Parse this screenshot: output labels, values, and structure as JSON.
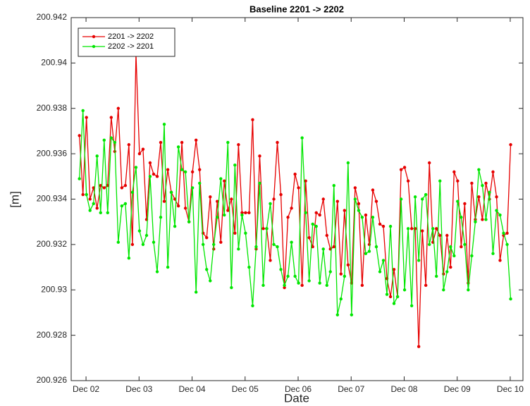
{
  "chart_data": {
    "type": "line",
    "title": "Baseline 2201 -> 2202",
    "x_label": "Date",
    "y_label": "[m]",
    "x": [
      1.875,
      1.942,
      2.008,
      2.075,
      2.142,
      2.208,
      2.275,
      2.342,
      2.408,
      2.475,
      2.542,
      2.608,
      2.675,
      2.742,
      2.808,
      2.875,
      2.942,
      3.008,
      3.075,
      3.142,
      3.208,
      3.275,
      3.342,
      3.408,
      3.475,
      3.542,
      3.608,
      3.675,
      3.742,
      3.808,
      3.875,
      3.942,
      4.008,
      4.075,
      4.142,
      4.208,
      4.275,
      4.342,
      4.408,
      4.475,
      4.542,
      4.608,
      4.675,
      4.742,
      4.808,
      4.875,
      4.942,
      5.008,
      5.075,
      5.142,
      5.208,
      5.275,
      5.342,
      5.408,
      5.475,
      5.542,
      5.608,
      5.675,
      5.742,
      5.808,
      5.875,
      5.942,
      6.008,
      6.075,
      6.142,
      6.208,
      6.275,
      6.342,
      6.408,
      6.475,
      6.542,
      6.608,
      6.675,
      6.742,
      6.808,
      6.875,
      6.942,
      7.008,
      7.075,
      7.142,
      7.208,
      7.275,
      7.342,
      7.408,
      7.475,
      7.542,
      7.608,
      7.675,
      7.742,
      7.808,
      7.875,
      7.942,
      8.008,
      8.075,
      8.142,
      8.208,
      8.275,
      8.342,
      8.408,
      8.475,
      8.542,
      8.608,
      8.675,
      8.742,
      8.808,
      8.875,
      8.942,
      9.008,
      9.075,
      9.142,
      9.208,
      9.275,
      9.342,
      9.408,
      9.475,
      9.542,
      9.608,
      9.675,
      9.742,
      9.808,
      9.875,
      9.942,
      10.008
    ],
    "series": [
      {
        "name": "2201 -> 2202",
        "color": "#e60000",
        "values": [
          200.9368,
          200.9342,
          200.9376,
          200.934,
          200.9345,
          200.9336,
          200.9346,
          200.9345,
          200.9346,
          200.9376,
          200.9361,
          200.938,
          200.9345,
          200.9346,
          200.9364,
          200.932,
          200.9404,
          200.936,
          200.9362,
          200.9331,
          200.9356,
          200.9351,
          200.935,
          200.9365,
          200.9339,
          200.9353,
          200.9343,
          200.934,
          200.9337,
          200.9365,
          200.9336,
          200.933,
          200.9352,
          200.9366,
          200.9353,
          200.9325,
          200.9323,
          200.9341,
          200.9318,
          200.9339,
          200.9321,
          200.9348,
          200.9335,
          200.934,
          200.9325,
          200.9364,
          200.9334,
          200.9334,
          200.9334,
          200.9375,
          200.9318,
          200.9359,
          200.9327,
          200.9327,
          200.9313,
          200.934,
          200.9365,
          200.9342,
          200.9301,
          200.9332,
          200.9336,
          200.9351,
          200.9345,
          200.9302,
          200.9348,
          200.9323,
          200.9319,
          200.9334,
          200.9333,
          200.934,
          200.9324,
          200.9318,
          200.9319,
          200.9339,
          200.9307,
          200.9335,
          200.9311,
          200.9303,
          200.9345,
          200.9338,
          200.9302,
          200.9333,
          200.932,
          200.9344,
          200.9339,
          200.9329,
          200.9328,
          200.9305,
          200.9297,
          200.9309,
          200.9297,
          200.9353,
          200.9354,
          200.9348,
          200.9327,
          200.9327,
          200.9275,
          200.9326,
          200.9302,
          200.9356,
          200.9321,
          200.9327,
          200.9324,
          200.9307,
          200.9324,
          200.931,
          200.9352,
          200.9348,
          200.9319,
          200.9338,
          200.9303,
          200.9347,
          200.9331,
          200.9341,
          200.9331,
          200.9347,
          200.934,
          200.9352,
          200.9341,
          200.9313,
          200.9324,
          200.9325,
          200.9364
        ]
      },
      {
        "name": "2202 -> 2201",
        "color": "#00e600",
        "values": [
          200.9349,
          200.9379,
          200.9342,
          200.9335,
          200.9338,
          200.9359,
          200.9334,
          200.9366,
          200.9334,
          200.9367,
          200.9365,
          200.9321,
          200.9337,
          200.9338,
          200.9314,
          200.9343,
          200.9354,
          200.9326,
          200.932,
          200.9324,
          200.935,
          200.9321,
          200.9308,
          200.9332,
          200.9373,
          200.931,
          200.9343,
          200.9328,
          200.9363,
          200.9353,
          200.9352,
          200.933,
          200.9345,
          200.9299,
          200.9347,
          200.932,
          200.9309,
          200.9304,
          200.932,
          200.9332,
          200.9349,
          200.9333,
          200.9365,
          200.9301,
          200.9355,
          200.9318,
          200.9333,
          200.9325,
          200.931,
          200.9293,
          200.9319,
          200.9347,
          200.9302,
          200.9327,
          200.9338,
          200.932,
          200.9319,
          200.9309,
          200.9302,
          200.9306,
          200.9321,
          200.9306,
          200.9303,
          200.9367,
          200.9334,
          200.9304,
          200.9329,
          200.9328,
          200.9303,
          200.9318,
          200.9302,
          200.9308,
          200.9346,
          200.9289,
          200.9296,
          200.9306,
          200.9356,
          200.9289,
          200.934,
          200.9335,
          200.9332,
          200.9316,
          200.9317,
          200.9332,
          200.9319,
          200.9308,
          200.9313,
          200.9298,
          200.9328,
          200.9294,
          200.9297,
          200.934,
          200.93,
          200.9327,
          200.9293,
          200.9341,
          200.9313,
          200.934,
          200.9342,
          200.932,
          200.9327,
          200.9306,
          200.9348,
          200.93,
          200.9308,
          200.9319,
          200.9315,
          200.9339,
          200.9332,
          200.932,
          200.93,
          200.9315,
          200.933,
          200.9353,
          200.9346,
          200.9331,
          200.9343,
          200.9316,
          200.9335,
          200.9333,
          200.9325,
          200.932,
          200.9296
        ]
      }
    ],
    "xlim": [
      1.72,
      10.24
    ],
    "xticks": [
      {
        "value": 2,
        "label": "Dec 02"
      },
      {
        "value": 3,
        "label": "Dec 03"
      },
      {
        "value": 4,
        "label": "Dec 04"
      },
      {
        "value": 5,
        "label": "Dec 05"
      },
      {
        "value": 6,
        "label": "Dec 06"
      },
      {
        "value": 7,
        "label": "Dec 07"
      },
      {
        "value": 8,
        "label": "Dec 08"
      },
      {
        "value": 9,
        "label": "Dec 09"
      },
      {
        "value": 10,
        "label": "Dec 10"
      }
    ],
    "ylim": [
      200.926,
      200.942
    ],
    "yticks": [
      200.926,
      200.928,
      200.93,
      200.932,
      200.934,
      200.936,
      200.938,
      200.94,
      200.942
    ],
    "legend": "top-left",
    "grid": false
  }
}
